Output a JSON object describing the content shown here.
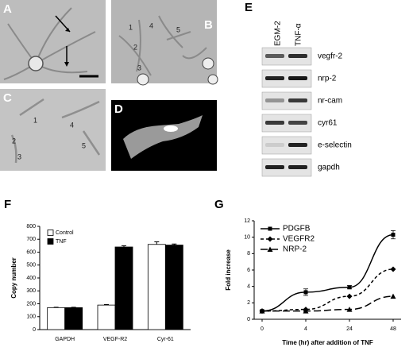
{
  "panels": {
    "A": "A",
    "B": "B",
    "C": "C",
    "D": "D",
    "E": "E",
    "F": "F",
    "G": "G",
    "B_cells": [
      "1",
      "4",
      "5",
      "2",
      "3"
    ],
    "C_cells": [
      "1",
      "4",
      "2",
      "3",
      "5"
    ]
  },
  "blot": {
    "lanes": [
      "EGM-2",
      "TNF-α"
    ],
    "bands": [
      "vegfr-2",
      "nrp-2",
      "nr-cam",
      "cyr61",
      "e-selectin",
      "gapdh"
    ]
  },
  "chart_data": [
    {
      "type": "bar",
      "y_label": "Copy number",
      "categories": [
        "GAPDH",
        "VEGF-R2",
        "Cyr-61"
      ],
      "series": [
        {
          "name": "Control",
          "color": "#ffffff",
          "values": [
            170,
            190,
            660
          ],
          "errors": [
            3,
            4,
            20
          ]
        },
        {
          "name": "TNF",
          "color": "#000000",
          "values": [
            170,
            640,
            655
          ],
          "errors": [
            3,
            10,
            8
          ]
        }
      ],
      "ylim": [
        0,
        800
      ],
      "yticks": [
        0,
        100,
        200,
        300,
        400,
        500,
        600,
        700,
        800
      ],
      "legend": "top-left"
    },
    {
      "type": "line",
      "x_label": "Time (hr) after addition of TNF",
      "y_label": "Fold increase",
      "categories": [
        "0",
        "4",
        "24",
        "48"
      ],
      "series": [
        {
          "name": "PDGFB",
          "color": "#000000",
          "values": [
            1,
            3.3,
            3.9,
            10.3
          ],
          "errors": [
            0.1,
            0.4,
            0.2,
            0.5
          ],
          "marker": "square",
          "line_style": "solid"
        },
        {
          "name": "VEGFR2",
          "color": "#000000",
          "values": [
            1,
            1.2,
            2.8,
            6.1
          ],
          "marker": "diamond",
          "line_style": "dashed"
        },
        {
          "name": "NRP-2",
          "color": "#000000",
          "values": [
            1,
            1.0,
            1.2,
            2.8
          ],
          "marker": "triangle",
          "line_style": "long-dashed"
        }
      ],
      "ylim": [
        0,
        12
      ],
      "yticks": [
        0,
        2,
        4,
        6,
        8,
        10,
        12
      ],
      "legend": "top-left"
    }
  ]
}
